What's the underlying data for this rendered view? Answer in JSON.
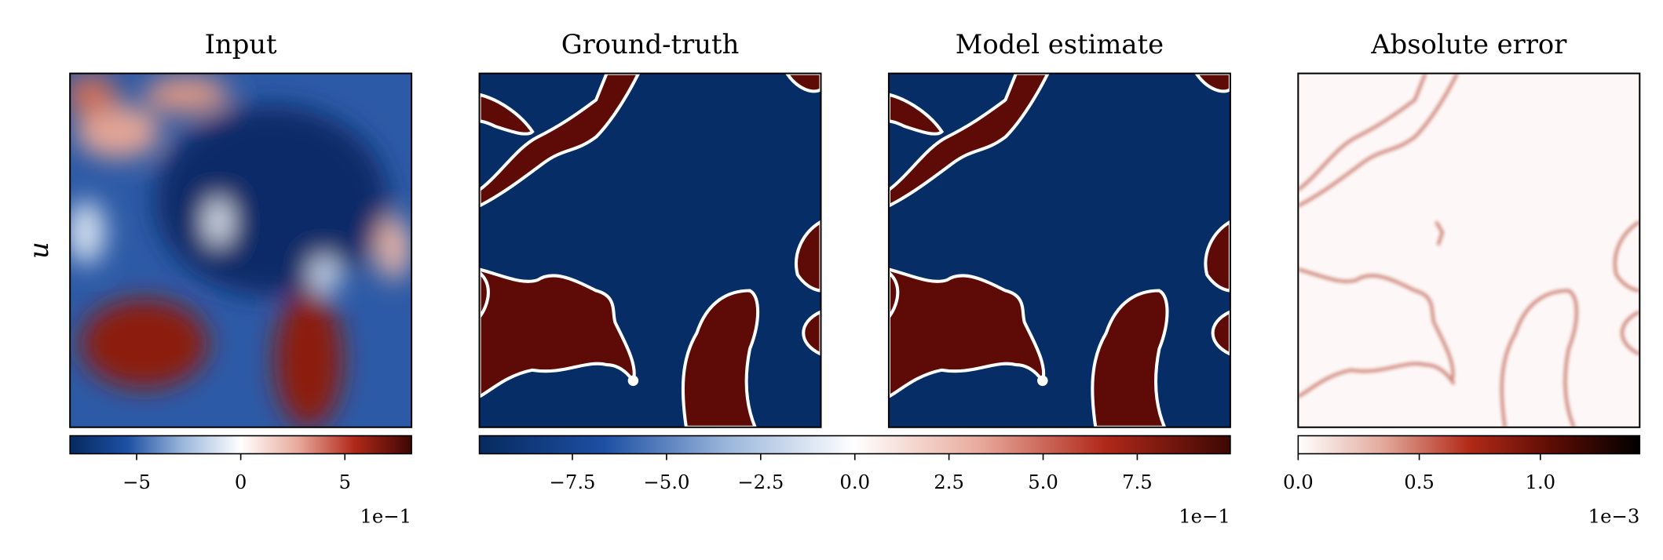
{
  "chart_data": [
    {
      "type": "heatmap",
      "title": "Input",
      "ylabel": "u",
      "colorbar": {
        "colors": [
          "#062a5e",
          "#1d4fa3",
          "#9db8dc",
          "#ffffff",
          "#e8aa9c",
          "#b0281a",
          "#3d0703"
        ],
        "lim": [
          -8.2,
          8.2
        ],
        "ticks": [
          {
            "value": -5,
            "label": "−5"
          },
          0,
          5
        ],
        "offset_label": "1e−1"
      }
    },
    {
      "type": "heatmap",
      "title": "Ground-truth",
      "colorbar": {
        "colors": [
          "#062a5e",
          "#1d4fa3",
          "#9db8dc",
          "#ffffff",
          "#e8aa9c",
          "#b0281a",
          "#3d0703"
        ],
        "lim": [
          -9.97,
          9.97
        ],
        "ticks": [
          {
            "value": -7.5,
            "label": "−7.5"
          },
          {
            "value": -5,
            "label": "−5.0"
          },
          {
            "value": -2.5,
            "label": "−2.5"
          },
          {
            "value": 0,
            "label": "0.0"
          },
          2.5,
          {
            "value": 5,
            "label": "5.0"
          },
          7.5
        ],
        "offset_label": "1e−1"
      }
    },
    {
      "type": "heatmap",
      "title": "Model estimate"
    },
    {
      "type": "heatmap",
      "title": "Absolute error",
      "colorbar": {
        "colors": [
          "#ffffff",
          "#e2a99c",
          "#b22a18",
          "#5a0c04",
          "#000000"
        ],
        "lim": [
          0,
          1.41
        ],
        "ticks": [
          {
            "value": 0,
            "label": "0.0"
          },
          0.5,
          {
            "value": 1,
            "label": "1.0"
          }
        ],
        "offset_label": "1e−3"
      }
    }
  ]
}
